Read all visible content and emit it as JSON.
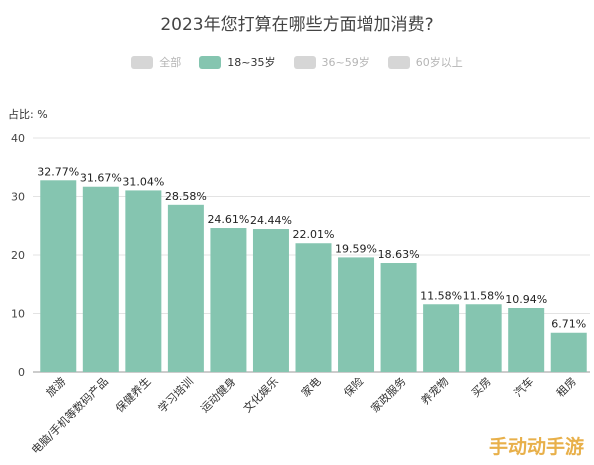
{
  "chart_data": {
    "type": "bar",
    "title": "2023年您打算在哪些方面增加消费?",
    "ylabel": "占比: %",
    "ylim": [
      0,
      40
    ],
    "yticks": [
      0,
      10,
      20,
      30,
      40
    ],
    "grid": true,
    "legend": {
      "placement": "top",
      "items": [
        {
          "label": "全部",
          "active": false,
          "color": "#d6d6d6"
        },
        {
          "label": "18~35岁",
          "active": true,
          "color": "#85c5b0"
        },
        {
          "label": "36~59岁",
          "active": false,
          "color": "#d6d6d6"
        },
        {
          "label": "60岁以上",
          "active": false,
          "color": "#d6d6d6"
        }
      ]
    },
    "categories": [
      "旅游",
      "电脑/手机等数码产品",
      "保健养生",
      "学习培训",
      "运动健身",
      "文化娱乐",
      "家电",
      "保险",
      "家政服务",
      "养宠物",
      "买房",
      "汽车",
      "租房"
    ],
    "values": [
      32.77,
      31.67,
      31.04,
      28.58,
      24.61,
      24.44,
      22.01,
      19.59,
      18.63,
      11.58,
      11.58,
      10.94,
      6.71
    ],
    "value_labels": [
      "32.77%",
      "31.67%",
      "31.04%",
      "28.58%",
      "24.61%",
      "24.44%",
      "22.01%",
      "19.59%",
      "18.63%",
      "11.58%",
      "11.58%",
      "10.94%",
      "6.71%"
    ],
    "bar_color": "#85c5b0"
  },
  "watermark": "手动动手游"
}
